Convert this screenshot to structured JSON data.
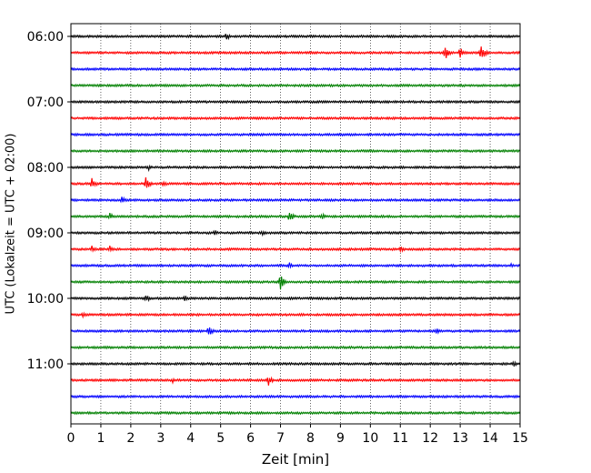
{
  "chart_data": {
    "type": "line",
    "title": "",
    "xlabel": "Zeit  [min]",
    "ylabel": "UTC (Lokalzeit = UTC + 02:00)",
    "xlim": [
      0,
      15
    ],
    "x_ticks": [
      0,
      1,
      2,
      3,
      4,
      5,
      6,
      7,
      8,
      9,
      10,
      11,
      12,
      13,
      14,
      15
    ],
    "y_tick_labels": [
      "06:00",
      "07:00",
      "08:00",
      "09:00",
      "10:00",
      "11:00"
    ],
    "trace_interval_min": 15,
    "start_time": "06:00",
    "grid": "x-dotted",
    "color_cycle": [
      "#000000",
      "#ff0000",
      "#0000ff",
      "#008000"
    ],
    "traces": [
      {
        "start": "06:00",
        "color": "#000000",
        "events": [
          {
            "t": 5.2,
            "amp": 5
          }
        ]
      },
      {
        "start": "06:15",
        "color": "#ff0000",
        "events": [
          {
            "t": 12.5,
            "amp": 9
          },
          {
            "t": 13.0,
            "amp": 6
          },
          {
            "t": 13.7,
            "amp": 11
          }
        ]
      },
      {
        "start": "06:30",
        "color": "#0000ff",
        "events": []
      },
      {
        "start": "06:45",
        "color": "#008000",
        "events": []
      },
      {
        "start": "07:00",
        "color": "#000000",
        "events": []
      },
      {
        "start": "07:15",
        "color": "#ff0000",
        "events": []
      },
      {
        "start": "07:30",
        "color": "#0000ff",
        "events": []
      },
      {
        "start": "07:45",
        "color": "#008000",
        "events": []
      },
      {
        "start": "08:00",
        "color": "#000000",
        "events": [
          {
            "t": 2.6,
            "amp": 3
          }
        ]
      },
      {
        "start": "08:15",
        "color": "#ff0000",
        "events": [
          {
            "t": 0.7,
            "amp": 7
          },
          {
            "t": 2.5,
            "amp": 8
          },
          {
            "t": 3.1,
            "amp": 4
          }
        ]
      },
      {
        "start": "08:30",
        "color": "#0000ff",
        "events": [
          {
            "t": 1.7,
            "amp": 4
          }
        ]
      },
      {
        "start": "08:45",
        "color": "#008000",
        "events": [
          {
            "t": 1.3,
            "amp": 4
          },
          {
            "t": 7.3,
            "amp": 7
          },
          {
            "t": 8.4,
            "amp": 4
          }
        ]
      },
      {
        "start": "09:00",
        "color": "#000000",
        "events": [
          {
            "t": 4.8,
            "amp": 4
          },
          {
            "t": 6.4,
            "amp": 3
          }
        ]
      },
      {
        "start": "09:15",
        "color": "#ff0000",
        "events": [
          {
            "t": 0.7,
            "amp": 4
          },
          {
            "t": 1.3,
            "amp": 4
          },
          {
            "t": 11.0,
            "amp": 4
          }
        ]
      },
      {
        "start": "09:30",
        "color": "#0000ff",
        "events": [
          {
            "t": 7.3,
            "amp": 4
          },
          {
            "t": 14.7,
            "amp": 3
          }
        ]
      },
      {
        "start": "09:45",
        "color": "#008000",
        "events": [
          {
            "t": 7.0,
            "amp": 9
          }
        ]
      },
      {
        "start": "10:00",
        "color": "#000000",
        "events": [
          {
            "t": 2.5,
            "amp": 5
          },
          {
            "t": 3.8,
            "amp": 4
          }
        ]
      },
      {
        "start": "10:15",
        "color": "#ff0000",
        "events": [
          {
            "t": 0.4,
            "amp": 4
          }
        ]
      },
      {
        "start": "10:30",
        "color": "#0000ff",
        "events": [
          {
            "t": 4.6,
            "amp": 6
          },
          {
            "t": 12.2,
            "amp": 4
          }
        ]
      },
      {
        "start": "10:45",
        "color": "#008000",
        "events": []
      },
      {
        "start": "11:00",
        "color": "#000000",
        "events": [
          {
            "t": 14.8,
            "amp": 4
          }
        ]
      },
      {
        "start": "11:15",
        "color": "#ff0000",
        "events": [
          {
            "t": 3.4,
            "amp": 3
          },
          {
            "t": 6.6,
            "amp": 6
          }
        ]
      },
      {
        "start": "11:30",
        "color": "#0000ff",
        "events": []
      },
      {
        "start": "11:45",
        "color": "#008000",
        "events": []
      }
    ]
  }
}
